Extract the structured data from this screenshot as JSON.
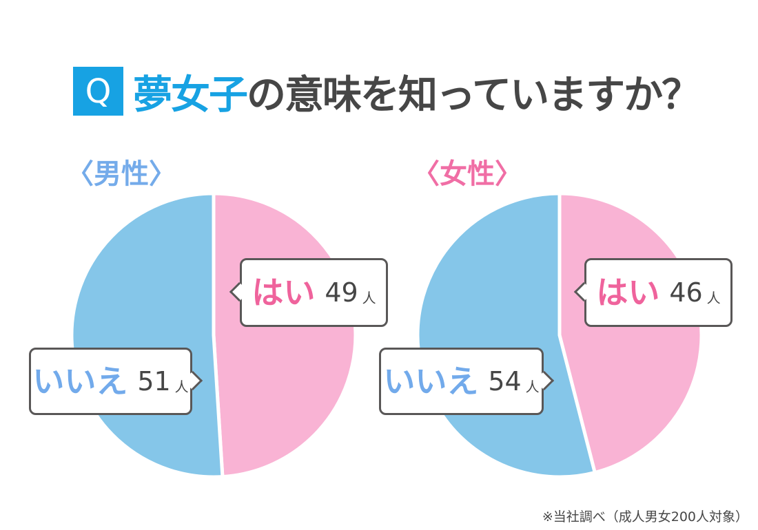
{
  "title": {
    "q_badge": "Q",
    "highlight": "夢女子",
    "rest": "の意味を知っていますか？"
  },
  "colors": {
    "accent_blue": "#17A2E3",
    "title_text": "#464646",
    "male_label_blue": "#74ABEA",
    "female_label_pink": "#F06EA5",
    "pie_blue": "#85C6E9",
    "pie_pink": "#F9B3D4",
    "yes_text_pink": "#EF639C",
    "no_text_blue": "#72AAEB",
    "callout_border": "#595757",
    "count_text": "#464646"
  },
  "unit_suffix": "人",
  "footnote": "※当社調べ（成人男女200人対象）",
  "chart_data": [
    {
      "type": "pie",
      "group": "男性",
      "group_label": "〈男性〉",
      "labels": [
        "はい",
        "いいえ"
      ],
      "values": [
        49,
        51
      ],
      "unit": "人",
      "total": 100,
      "colors": [
        "#F9B3D4",
        "#85C6E9"
      ],
      "label_colors": [
        "#EF639C",
        "#72AAEB"
      ],
      "start_angle_deg": 0,
      "direction": "clockwise",
      "legend_position": "callouts"
    },
    {
      "type": "pie",
      "group": "女性",
      "group_label": "〈女性〉",
      "labels": [
        "はい",
        "いいえ"
      ],
      "values": [
        46,
        54
      ],
      "unit": "人",
      "total": 100,
      "colors": [
        "#F9B3D4",
        "#85C6E9"
      ],
      "label_colors": [
        "#EF639C",
        "#72AAEB"
      ],
      "start_angle_deg": 0,
      "direction": "clockwise",
      "legend_position": "callouts"
    }
  ]
}
